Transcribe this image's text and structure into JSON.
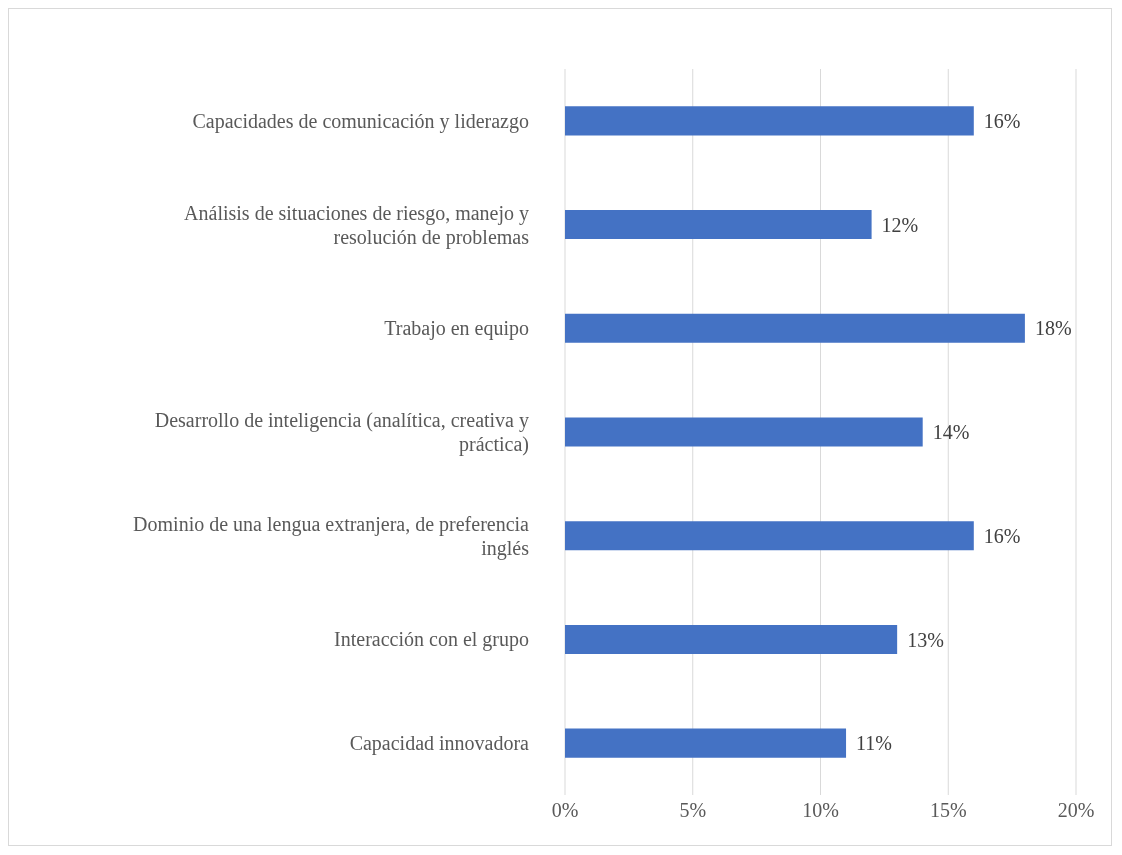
{
  "chart_data": {
    "type": "bar",
    "orientation": "horizontal",
    "categories": [
      "Capacidades de comunicación y liderazgo",
      "Análisis de situaciones de riesgo, manejo y resolución de problemas",
      "Trabajo en equipo",
      "Desarrollo de inteligencia (analítica, creativa y práctica)",
      "Dominio de una lengua extranjera, de preferencia inglés",
      "Interacción con el grupo",
      "Capacidad innovadora"
    ],
    "values": [
      16,
      12,
      18,
      14,
      16,
      13,
      11
    ],
    "value_labels": [
      "16%",
      "12%",
      "18%",
      "14%",
      "16%",
      "13%",
      "11%"
    ],
    "color": "#4472c4",
    "xlim": [
      0,
      20
    ],
    "xticks": [
      {
        "value": 0,
        "label": "0%"
      },
      {
        "value": 5,
        "label": "5%"
      },
      {
        "value": 10,
        "label": "10%"
      },
      {
        "value": 15,
        "label": "15%"
      },
      {
        "value": 20,
        "label": "20%"
      }
    ],
    "grid": "x",
    "legend": false
  }
}
